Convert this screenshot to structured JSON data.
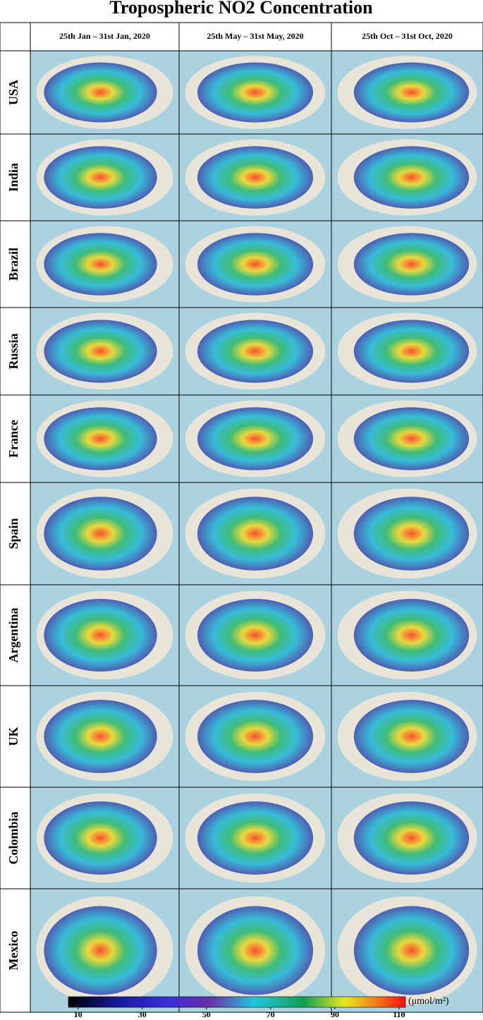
{
  "title": "Tropospheric NO2 Concentration",
  "columns": [
    "25th Jan – 31st Jan, 2020",
    "25th May – 31st May, 2020",
    "25th Oct – 31st Oct, 2020"
  ],
  "rows": [
    "USA",
    "India",
    "Brazil",
    "Russia",
    "France",
    "Spain",
    "Argentina",
    "UK",
    "Colombia",
    "Mexico"
  ],
  "colorbar": {
    "unit": "(μmol/m²)",
    "lim": [
      7,
      112
    ],
    "ticks": [
      10,
      30,
      50,
      70,
      90,
      110
    ]
  }
}
